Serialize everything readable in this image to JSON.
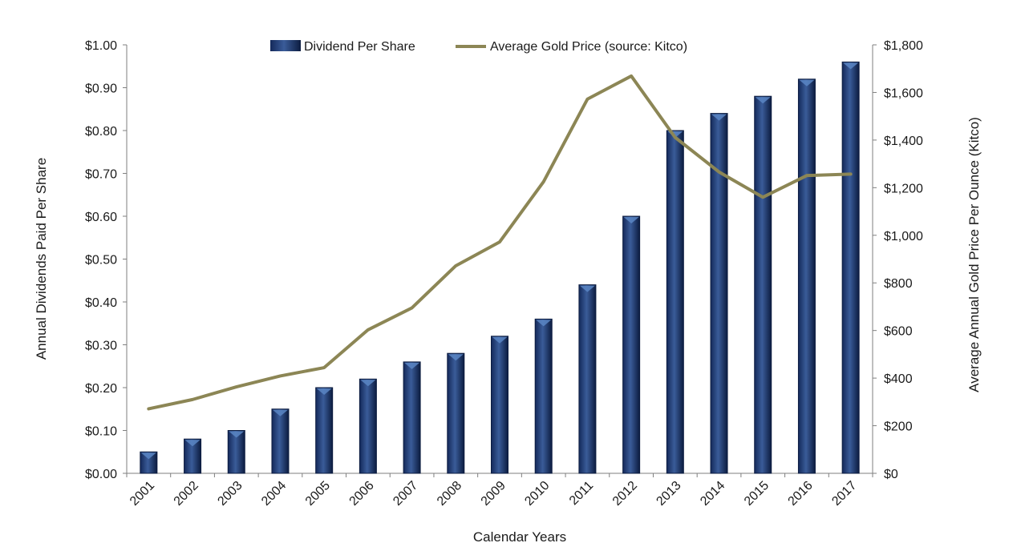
{
  "chart_data": {
    "type": "bar",
    "categories": [
      "2001",
      "2002",
      "2003",
      "2004",
      "2005",
      "2006",
      "2007",
      "2008",
      "2009",
      "2010",
      "2011",
      "2012",
      "2013",
      "2014",
      "2015",
      "2016",
      "2017"
    ],
    "series": [
      {
        "name": "Dividend Per Share",
        "type": "bar",
        "axis": "left",
        "values": [
          0.05,
          0.08,
          0.1,
          0.15,
          0.2,
          0.22,
          0.26,
          0.28,
          0.32,
          0.36,
          0.44,
          0.6,
          0.8,
          0.84,
          0.88,
          0.92,
          0.96
        ]
      },
      {
        "name": "Average Gold Price (source: Kitco)",
        "type": "line",
        "axis": "right",
        "values": [
          271,
          310,
          363,
          409,
          444,
          603,
          695,
          872,
          972,
          1225,
          1572,
          1669,
          1411,
          1266,
          1160,
          1251,
          1257
        ]
      }
    ],
    "xlabel": "Calendar Years",
    "ylabel": "Annual Dividends Paid Per Share",
    "y2label": "Average Annual Gold Price Per Ounce (Kitco)",
    "ylim": [
      0,
      1.0
    ],
    "y2lim": [
      0,
      1800
    ],
    "yticks": [
      "$0.00",
      "$0.10",
      "$0.20",
      "$0.30",
      "$0.40",
      "$0.50",
      "$0.60",
      "$0.70",
      "$0.80",
      "$0.90",
      "$1.00"
    ],
    "y2ticks": [
      "$0",
      "$200",
      "$400",
      "$600",
      "$800",
      "$1,000",
      "$1,200",
      "$1,400",
      "$1,600",
      "$1,800"
    ],
    "legend": "top-center",
    "grid": false,
    "colors": {
      "bar": "#1f3d73",
      "bar_dark": "#0f2146",
      "bar_light": "#4a72b0",
      "line": "#8c8655",
      "axis": "#7f7f7f"
    }
  }
}
